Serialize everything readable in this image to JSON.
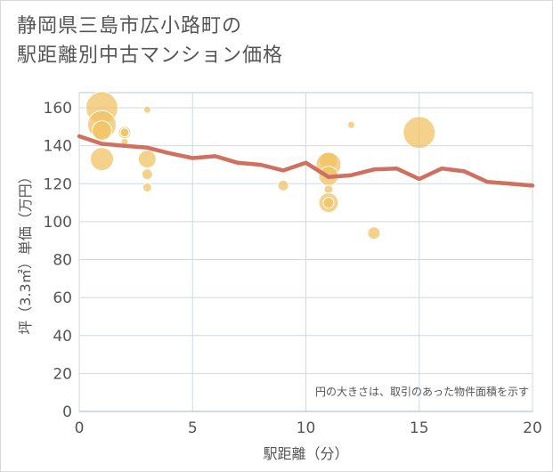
{
  "header": {
    "title_line1": "静岡県三島市広小路町の",
    "title_line2": "駅距離別中古マンション価格"
  },
  "colors": {
    "bubble": "#f0c060",
    "line": "#d07060",
    "grid": "#d0d8e0",
    "plot_border": "#b8c4d0",
    "text": "#555555"
  },
  "chart_data": {
    "type": "scatter",
    "title": "静岡県三島市広小路町の駅距離別中古マンション価格",
    "xlabel": "駅距離（分）",
    "ylabel": "坪（3.3㎡）単価（万円）",
    "xlim": [
      0,
      20
    ],
    "ylim": [
      0,
      168
    ],
    "x_ticks": [
      0,
      5,
      10,
      15,
      20
    ],
    "y_ticks": [
      0,
      20,
      40,
      60,
      80,
      100,
      120,
      140,
      160
    ],
    "grid": true,
    "note": "円の大きさは、取引のあった物件面積を示す",
    "series": [
      {
        "kind": "bubble",
        "points": [
          {
            "x": 1,
            "y": 160,
            "size": 18
          },
          {
            "x": 1,
            "y": 151,
            "size": 16
          },
          {
            "x": 1,
            "y": 148,
            "size": 11
          },
          {
            "x": 1,
            "y": 133,
            "size": 13
          },
          {
            "x": 2,
            "y": 147,
            "size": 7
          },
          {
            "x": 2,
            "y": 147,
            "size": 5
          },
          {
            "x": 2,
            "y": 142,
            "size": 4
          },
          {
            "x": 3,
            "y": 159,
            "size": 4
          },
          {
            "x": 3,
            "y": 133,
            "size": 10
          },
          {
            "x": 3,
            "y": 125,
            "size": 6
          },
          {
            "x": 3,
            "y": 118,
            "size": 5
          },
          {
            "x": 9,
            "y": 119,
            "size": 6
          },
          {
            "x": 11,
            "y": 132,
            "size": 10
          },
          {
            "x": 11,
            "y": 130,
            "size": 14
          },
          {
            "x": 11,
            "y": 124,
            "size": 11
          },
          {
            "x": 11,
            "y": 117,
            "size": 5
          },
          {
            "x": 11,
            "y": 110,
            "size": 11
          },
          {
            "x": 11,
            "y": 110,
            "size": 6
          },
          {
            "x": 12,
            "y": 151,
            "size": 4
          },
          {
            "x": 13,
            "y": 94,
            "size": 7
          },
          {
            "x": 15,
            "y": 147,
            "size": 18
          }
        ]
      },
      {
        "kind": "line",
        "x": [
          0,
          1,
          2,
          3,
          4,
          5,
          6,
          7,
          8,
          9,
          10,
          11,
          12,
          13,
          14,
          15,
          16,
          17,
          18,
          19,
          20
        ],
        "values": [
          145,
          141,
          140,
          139,
          136,
          133.5,
          134.5,
          131,
          130,
          127,
          131,
          123.5,
          124.5,
          127.5,
          128,
          122.5,
          128,
          126.5,
          121,
          120,
          119
        ]
      }
    ]
  }
}
